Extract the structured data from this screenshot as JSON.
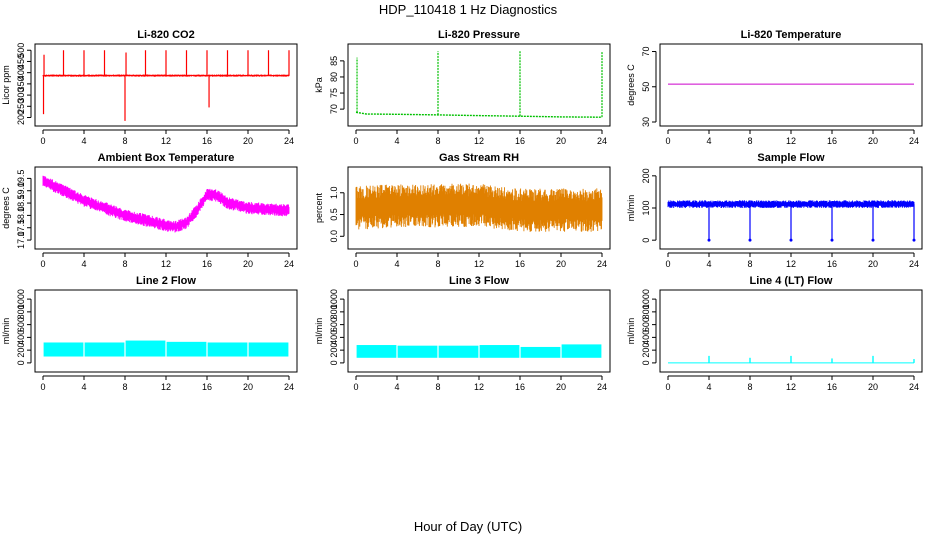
{
  "figure": {
    "title": "HDP_110418  1 Hz Diagnostics",
    "xlabel": "Hour of Day (UTC)"
  },
  "chart_data": [
    {
      "type": "line",
      "title": "Li-820 CO2",
      "ylabel": "Licor ppm",
      "color": "#ff0000",
      "xlim": [
        0,
        24
      ],
      "xticks": [
        0,
        4,
        8,
        12,
        16,
        20,
        24
      ],
      "ylim": [
        180,
        510
      ],
      "yticks": [
        200,
        250,
        300,
        350,
        400,
        450,
        500
      ],
      "series": [
        {
          "baseline": 387,
          "noise": 5,
          "spikes": [
            {
              "x": 0.05,
              "y": 215
            },
            {
              "x": 0.1,
              "y": 480
            },
            {
              "x": 2.0,
              "y": 500
            },
            {
              "x": 4.0,
              "y": 500
            },
            {
              "x": 6.0,
              "y": 500
            },
            {
              "x": 8.0,
              "y": 185
            },
            {
              "x": 8.1,
              "y": 490
            },
            {
              "x": 10.0,
              "y": 500
            },
            {
              "x": 12.0,
              "y": 500
            },
            {
              "x": 14.0,
              "y": 500
            },
            {
              "x": 16.0,
              "y": 500
            },
            {
              "x": 16.2,
              "y": 245
            },
            {
              "x": 18.0,
              "y": 500
            },
            {
              "x": 20.0,
              "y": 500
            },
            {
              "x": 22.0,
              "y": 500
            },
            {
              "x": 24.0,
              "y": 500
            }
          ]
        }
      ]
    },
    {
      "type": "line",
      "title": "Li-820 Pressure",
      "ylabel": "kPa",
      "color": "#00c000",
      "xlim": [
        0,
        24
      ],
      "xticks": [
        0,
        4,
        8,
        12,
        16,
        20,
        24
      ],
      "ylim": [
        66,
        89
      ],
      "yticks": [
        70,
        75,
        80,
        85
      ],
      "series": [
        {
          "points": [
            [
              0,
              69
            ],
            [
              1,
              68.5
            ],
            [
              4,
              68.4
            ],
            [
              8,
              68.2
            ],
            [
              12,
              68.0
            ],
            [
              16,
              67.8
            ],
            [
              20,
              67.6
            ],
            [
              24,
              67.5
            ]
          ],
          "spikes": [
            {
              "x": 0.1,
              "y": 86
            },
            {
              "x": 8.0,
              "y": 88
            },
            {
              "x": 16.0,
              "y": 88
            },
            {
              "x": 24.0,
              "y": 88
            }
          ]
        }
      ]
    },
    {
      "type": "line",
      "title": "Li-820 Temperature",
      "ylabel": "degrees C",
      "color": "#cc00cc",
      "xlim": [
        0,
        24
      ],
      "xticks": [
        0,
        4,
        8,
        12,
        16,
        20,
        24
      ],
      "ylim": [
        30,
        72
      ],
      "yticks": [
        30,
        50,
        70
      ],
      "series": [
        {
          "points": [
            [
              0,
              51.5
            ],
            [
              24,
              51.5
            ]
          ]
        }
      ]
    },
    {
      "type": "line",
      "title": "Ambient Box Temperature",
      "ylabel": "degrees C",
      "color": "#ff00ff",
      "xlim": [
        0,
        24
      ],
      "xticks": [
        0,
        4,
        8,
        12,
        16,
        20,
        24
      ],
      "ylim": [
        16.8,
        19.8
      ],
      "yticks": [
        17.0,
        17.5,
        18.0,
        18.5,
        19.0,
        19.5
      ],
      "series": [
        {
          "noise": 0.25,
          "points": [
            [
              0,
              19.4
            ],
            [
              2,
              19.0
            ],
            [
              4,
              18.6
            ],
            [
              6,
              18.3
            ],
            [
              8,
              18.0
            ],
            [
              10,
              17.8
            ],
            [
              12,
              17.6
            ],
            [
              13,
              17.55
            ],
            [
              14,
              17.7
            ],
            [
              15,
              18.2
            ],
            [
              16,
              18.85
            ],
            [
              17,
              18.8
            ],
            [
              18,
              18.5
            ],
            [
              20,
              18.3
            ],
            [
              22,
              18.25
            ],
            [
              24,
              18.2
            ]
          ]
        }
      ]
    },
    {
      "type": "line",
      "title": "Gas Stream RH",
      "ylabel": "percent",
      "color": "#e08000",
      "xlim": [
        0,
        24
      ],
      "xticks": [
        0,
        4,
        8,
        12,
        16,
        20,
        24
      ],
      "ylim": [
        -0.2,
        1.5
      ],
      "yticks": [
        0.0,
        0.5,
        1.0
      ],
      "series": [
        {
          "noise": 0.5,
          "points": [
            [
              0,
              0.65
            ],
            [
              4,
              0.7
            ],
            [
              8,
              0.7
            ],
            [
              12,
              0.72
            ],
            [
              16,
              0.6
            ],
            [
              20,
              0.6
            ],
            [
              24,
              0.6
            ]
          ]
        }
      ]
    },
    {
      "type": "line",
      "title": "Sample Flow",
      "ylabel": "ml/min",
      "color": "#0000ff",
      "xlim": [
        0,
        24
      ],
      "xticks": [
        0,
        4,
        8,
        12,
        16,
        20,
        24
      ],
      "ylim": [
        -15,
        215
      ],
      "yticks": [
        0,
        100,
        200
      ],
      "series": [
        {
          "baseline": 112,
          "noise": 12,
          "dips": [
            {
              "x": 4,
              "y": 0
            },
            {
              "x": 8,
              "y": 0
            },
            {
              "x": 12,
              "y": 0
            },
            {
              "x": 16,
              "y": 0
            },
            {
              "x": 20,
              "y": 0
            },
            {
              "x": 24,
              "y": 0
            }
          ]
        }
      ]
    },
    {
      "type": "line",
      "title": "Line 2 Flow",
      "ylabel": "ml/min",
      "color": "#00ffff",
      "xlim": [
        0,
        24
      ],
      "xticks": [
        0,
        4,
        8,
        12,
        16,
        20,
        24
      ],
      "ylim": [
        -80,
        1080
      ],
      "yticks": [
        0,
        200,
        400,
        600,
        800,
        1000
      ],
      "series": [
        {
          "band_low": 100,
          "band_high": 320,
          "segments": [
            {
              "x0": 0,
              "x1": 4,
              "high": 320
            },
            {
              "x0": 4,
              "x1": 8,
              "high": 320
            },
            {
              "x0": 8,
              "x1": 12,
              "high": 350
            },
            {
              "x0": 12,
              "x1": 16,
              "high": 330
            },
            {
              "x0": 16,
              "x1": 20,
              "high": 320
            },
            {
              "x0": 20,
              "x1": 24,
              "high": 320
            }
          ]
        }
      ]
    },
    {
      "type": "line",
      "title": "Line 3 Flow",
      "ylabel": "ml/min",
      "color": "#00ffff",
      "xlim": [
        0,
        24
      ],
      "xticks": [
        0,
        4,
        8,
        12,
        16,
        20,
        24
      ],
      "ylim": [
        -80,
        1080
      ],
      "yticks": [
        0,
        200,
        400,
        600,
        800,
        1000
      ],
      "series": [
        {
          "band_low": 80,
          "band_high": 280,
          "segments": [
            {
              "x0": 0,
              "x1": 4,
              "high": 280
            },
            {
              "x0": 4,
              "x1": 8,
              "high": 270
            },
            {
              "x0": 8,
              "x1": 12,
              "high": 270
            },
            {
              "x0": 12,
              "x1": 16,
              "high": 280
            },
            {
              "x0": 16,
              "x1": 20,
              "high": 250
            },
            {
              "x0": 20,
              "x1": 24,
              "high": 290
            }
          ]
        }
      ]
    },
    {
      "type": "line",
      "title": "Line 4 (LT) Flow",
      "ylabel": "ml/min",
      "color": "#00ffff",
      "xlim": [
        0,
        24
      ],
      "xticks": [
        0,
        4,
        8,
        12,
        16,
        20,
        24
      ],
      "ylim": [
        -80,
        1080
      ],
      "yticks": [
        0,
        200,
        400,
        600,
        800,
        1000
      ],
      "series": [
        {
          "baseline": 0,
          "spikes": [
            {
              "x": 4,
              "y": 110
            },
            {
              "x": 8,
              "y": 80
            },
            {
              "x": 12,
              "y": 110
            },
            {
              "x": 16,
              "y": 70
            },
            {
              "x": 20,
              "y": 110
            },
            {
              "x": 24,
              "y": 60
            }
          ]
        }
      ]
    }
  ]
}
